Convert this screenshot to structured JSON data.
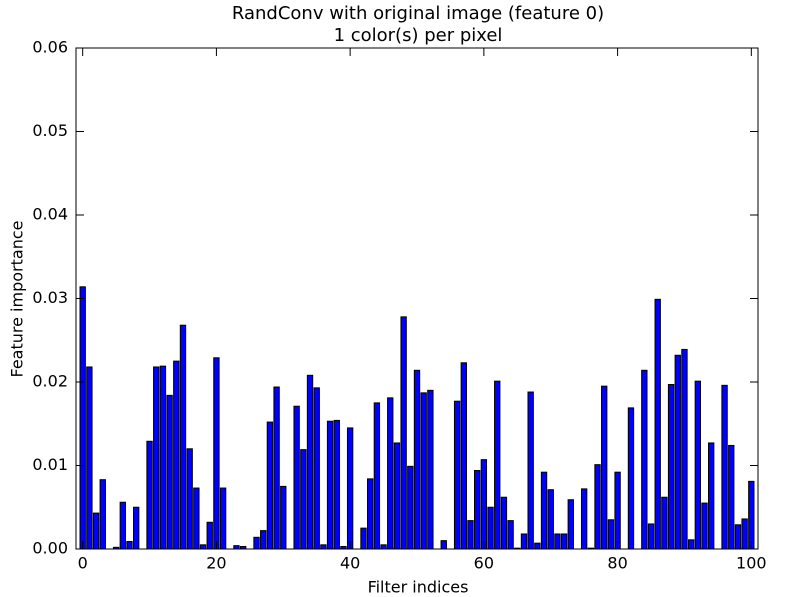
{
  "chart_data": {
    "type": "bar",
    "title": "RandConv with original image (feature 0)",
    "subtitle": "1 color(s) per pixel",
    "xlabel": "Filter indices",
    "ylabel": "Feature importance",
    "x": [
      0,
      1,
      2,
      3,
      4,
      5,
      6,
      7,
      8,
      9,
      10,
      11,
      12,
      13,
      14,
      15,
      16,
      17,
      18,
      19,
      20,
      21,
      22,
      23,
      24,
      25,
      26,
      27,
      28,
      29,
      30,
      31,
      32,
      33,
      34,
      35,
      36,
      37,
      38,
      39,
      40,
      41,
      42,
      43,
      44,
      45,
      46,
      47,
      48,
      49,
      50,
      51,
      52,
      53,
      54,
      55,
      56,
      57,
      58,
      59,
      60,
      61,
      62,
      63,
      64,
      65,
      66,
      67,
      68,
      69,
      70,
      71,
      72,
      73,
      74,
      75,
      76,
      77,
      78,
      79,
      80,
      81,
      82,
      83,
      84,
      85,
      86,
      87,
      88,
      89,
      90,
      91,
      92,
      93,
      94,
      95,
      96,
      97,
      98,
      99,
      100
    ],
    "values": [
      0.0314,
      0.0218,
      0.0043,
      0.0083,
      0.0,
      0.0002,
      0.0056,
      0.0009,
      0.005,
      0.0,
      0.0129,
      0.0218,
      0.0219,
      0.0184,
      0.0225,
      0.0268,
      0.012,
      0.0073,
      0.0005,
      0.0032,
      0.0229,
      0.0073,
      0.0,
      0.0004,
      0.0003,
      0.0,
      0.0014,
      0.0022,
      0.0152,
      0.0194,
      0.0075,
      0.0,
      0.0171,
      0.0119,
      0.0208,
      0.0193,
      0.0005,
      0.0153,
      0.0154,
      0.0003,
      0.0145,
      0.0,
      0.0025,
      0.0084,
      0.0175,
      0.0005,
      0.0181,
      0.0127,
      0.0278,
      0.0099,
      0.0214,
      0.0187,
      0.019,
      0.0,
      0.001,
      0.0,
      0.0177,
      0.0223,
      0.0034,
      0.0094,
      0.0107,
      0.005,
      0.0201,
      0.0062,
      0.0034,
      0.0001,
      0.0018,
      0.0188,
      0.0007,
      0.0092,
      0.0071,
      0.0018,
      0.0018,
      0.0059,
      0.0,
      0.0072,
      0.0001,
      0.0101,
      0.0195,
      0.0035,
      0.0092,
      0.0,
      0.0169,
      0.0,
      0.0214,
      0.003,
      0.0299,
      0.0062,
      0.0197,
      0.0232,
      0.0239,
      0.0011,
      0.0201,
      0.0055,
      0.0127,
      0.0,
      0.0196,
      0.0124,
      0.0029,
      0.0036,
      0.0081
    ],
    "color": "#0000ff",
    "xlim": [
      -1,
      101
    ],
    "xticks": [
      0,
      20,
      40,
      60,
      80,
      100
    ],
    "ylim": [
      0,
      0.06
    ],
    "yticks": [
      {
        "value": 0,
        "label": "0.00"
      },
      {
        "value": 0.01,
        "label": "0.01"
      },
      {
        "value": 0.02,
        "label": "0.02"
      },
      {
        "value": 0.03,
        "label": "0.03"
      },
      {
        "value": 0.04,
        "label": "0.04"
      },
      {
        "value": 0.05,
        "label": "0.05"
      },
      {
        "value": 0.06,
        "label": "0.06"
      }
    ],
    "grid": false
  }
}
